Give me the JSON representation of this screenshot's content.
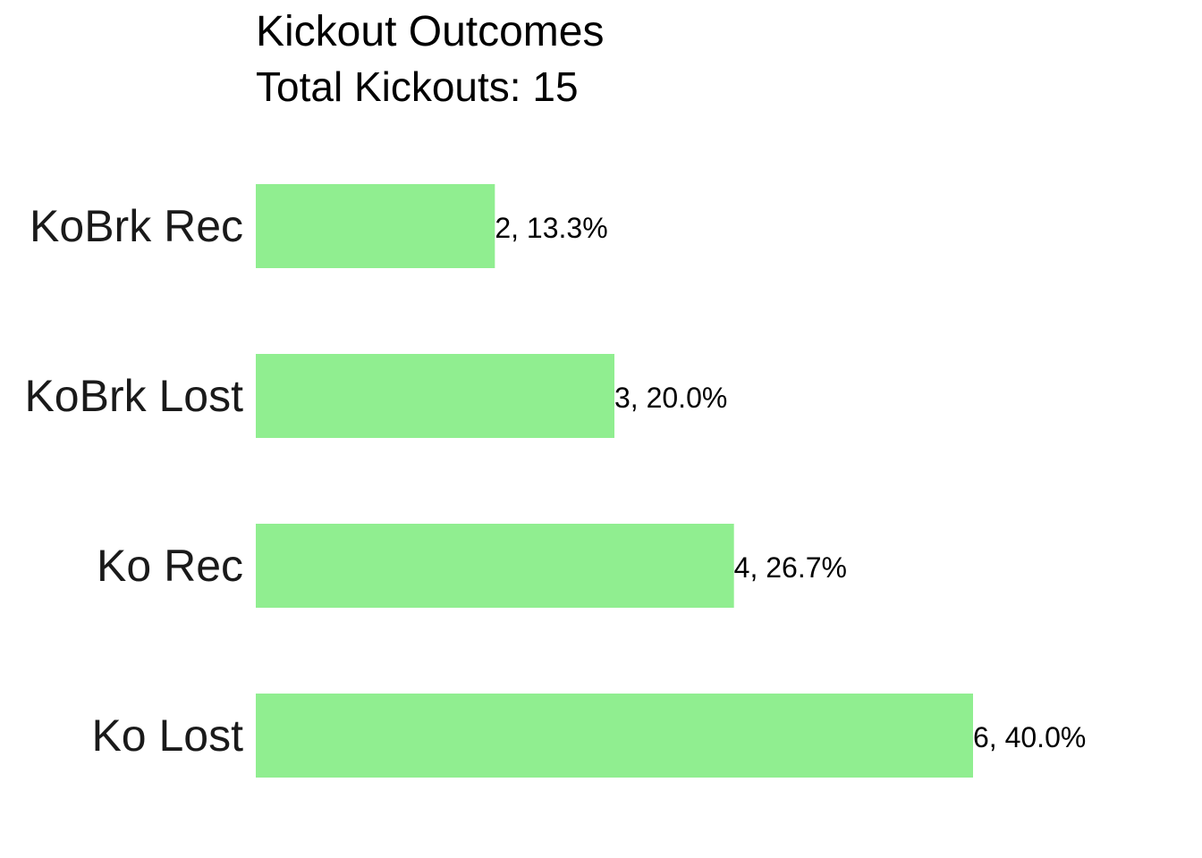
{
  "chart_data": {
    "type": "bar",
    "orientation": "horizontal",
    "title": "Kickout Outcomes",
    "subtitle": "Total Kickouts: 15",
    "categories": [
      "KoBrk Rec",
      "KoBrk Lost",
      "Ko Rec",
      "Ko Lost"
    ],
    "values": [
      2,
      3,
      4,
      6
    ],
    "data_labels": [
      "2, 13.3%",
      "3, 20.0%",
      "4, 26.7%",
      "6, 40.0%"
    ],
    "xlabel": "",
    "ylabel": "",
    "xlim": [
      0,
      6
    ],
    "grid": false,
    "legend": "none",
    "colors": {
      "bar": "#90EE90",
      "category_text": "#1a1a1a",
      "label_text": "#000000"
    }
  }
}
